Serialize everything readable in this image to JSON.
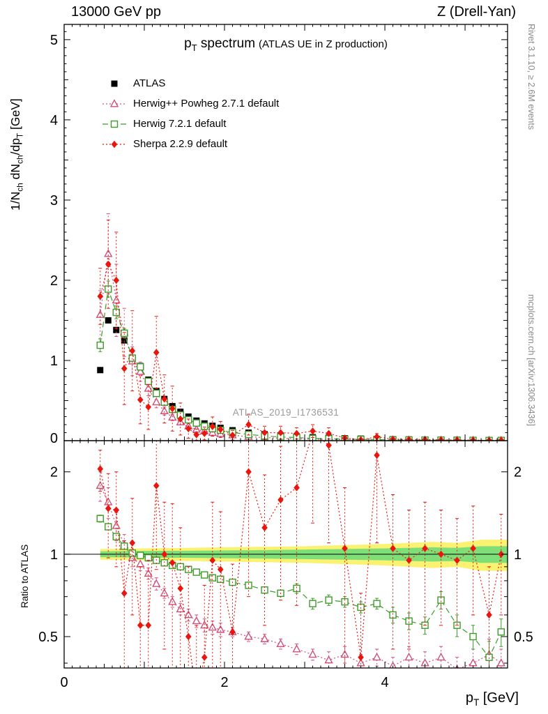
{
  "header": {
    "left": "13000 GeV pp",
    "right": "Z (Drell-Yan)"
  },
  "side_notes": {
    "top_right": "Rivet 3.1.10, ≥ 2.6M events",
    "bottom_right": "mcplots.cern.ch [arXiv:1306.3436]"
  },
  "watermark": "ATLAS_2019_I1736531",
  "chart_data": {
    "type": "line",
    "title_main": "p_{T} spectrum",
    "title_note": "(ATLAS UE in Z production)",
    "xlabel": "p_{T} [GeV]",
    "ylabel": "1/N_{ch} dN_{ch}/dp_{T} [GeV]",
    "ratio_label": "Ratio to ATLAS",
    "xlim": [
      0,
      5.53
    ],
    "ylim": [
      0,
      5.19
    ],
    "ratio_ylim": [
      0.384,
      2.6
    ],
    "x_ticks_labeled": [
      0,
      2,
      4
    ],
    "y_ticks_labeled": [
      0,
      1,
      2,
      3,
      4,
      5
    ],
    "ratio_ticks_labeled": [
      0.5,
      1,
      2
    ],
    "band_colors": {
      "outer": "#fbf272",
      "inner": "#7edf78"
    },
    "bands": {
      "x": [
        0.45,
        1.0,
        1.5,
        2.0,
        2.5,
        3.0,
        3.5,
        4.0,
        4.3,
        4.6,
        4.9,
        5.2,
        5.53
      ],
      "outer_halfwidth": [
        0.045,
        0.05,
        0.055,
        0.06,
        0.065,
        0.07,
        0.08,
        0.09,
        0.1,
        0.11,
        0.1,
        0.13,
        0.13
      ],
      "inner_halfwidth": [
        0.025,
        0.028,
        0.03,
        0.033,
        0.036,
        0.04,
        0.045,
        0.05,
        0.055,
        0.06,
        0.055,
        0.07,
        0.07
      ]
    },
    "x": [
      0.45,
      0.55,
      0.65,
      0.75,
      0.85,
      0.95,
      1.05,
      1.15,
      1.25,
      1.35,
      1.45,
      1.55,
      1.65,
      1.75,
      1.85,
      1.95,
      2.1,
      2.3,
      2.5,
      2.7,
      2.9,
      3.1,
      3.3,
      3.5,
      3.7,
      3.9,
      4.1,
      4.3,
      4.5,
      4.7,
      4.9,
      5.1,
      5.3,
      5.45
    ],
    "series": [
      {
        "name": "ATLAS",
        "color": "#000000",
        "marker": "square-filled",
        "line": "none",
        "values": [
          0.88,
          1.5,
          1.38,
          1.25,
          1.02,
          0.93,
          0.76,
          0.62,
          0.52,
          0.43,
          0.36,
          0.3,
          0.25,
          0.215,
          0.185,
          0.16,
          0.13,
          0.1,
          0.08,
          0.064,
          0.052,
          0.043,
          0.036,
          0.03,
          0.025,
          0.021,
          0.018,
          0.015,
          0.013,
          0.011,
          0.01,
          0.008,
          0.007,
          0.006
        ]
      },
      {
        "name": "Herwig++ Powheg 2.7.1 default",
        "color": "#d0507a",
        "marker": "triangle-open",
        "line": "dotted",
        "values": [
          1.57,
          2.33,
          1.75,
          1.35,
          0.99,
          0.86,
          0.65,
          0.48,
          0.37,
          0.29,
          0.23,
          0.18,
          0.14,
          0.12,
          0.1,
          0.085,
          0.068,
          0.05,
          0.039,
          0.03,
          0.023,
          0.018,
          0.015,
          0.013,
          0.01,
          0.009,
          0.007,
          0.006,
          0.005,
          0.005,
          0.004,
          0.003,
          0.003,
          0.002
        ],
        "yerr": [
          0.3,
          0.5,
          0.45,
          0.3,
          0.18,
          0.12,
          0.09,
          0.07,
          0.05,
          0.04,
          0.03,
          0.025,
          0.02,
          0.018,
          0.015,
          0.013,
          0.01,
          0.008,
          0.007,
          0.006,
          0.005,
          0.004,
          0.004,
          0.003,
          0.003,
          0.003,
          0.002,
          0.002,
          0.002,
          0.002,
          0.002,
          0.002,
          0.002,
          0.002
        ],
        "ratio": [
          1.78,
          1.55,
          1.27,
          1.08,
          0.97,
          0.92,
          0.85,
          0.78,
          0.72,
          0.67,
          0.63,
          0.6,
          0.57,
          0.55,
          0.54,
          0.53,
          0.52,
          0.5,
          0.49,
          0.47,
          0.45,
          0.43,
          0.41,
          0.43,
          0.4,
          0.42,
          0.39,
          0.42,
          0.4,
          0.42,
          0.38,
          0.4,
          0.43,
          0.4
        ],
        "ratio_err": [
          0.22,
          0.2,
          0.15,
          0.1,
          0.07,
          0.05,
          0.04,
          0.04,
          0.03,
          0.03,
          0.03,
          0.03,
          0.03,
          0.03,
          0.03,
          0.03,
          0.02,
          0.02,
          0.02,
          0.02,
          0.02,
          0.02,
          0.03,
          0.03,
          0.03,
          0.03,
          0.03,
          0.04,
          0.04,
          0.04,
          0.04,
          0.05,
          0.06,
          0.05
        ]
      },
      {
        "name": "Herwig 7.2.1 default",
        "color": "#3b9c28",
        "marker": "square-open",
        "line": "dashed",
        "values": [
          1.19,
          1.89,
          1.6,
          1.34,
          1.03,
          0.92,
          0.74,
          0.59,
          0.48,
          0.39,
          0.32,
          0.26,
          0.22,
          0.18,
          0.15,
          0.13,
          0.103,
          0.077,
          0.059,
          0.046,
          0.039,
          0.028,
          0.024,
          0.02,
          0.016,
          0.014,
          0.011,
          0.0086,
          0.0072,
          0.0075,
          0.0055,
          0.004,
          0.0029,
          0.0031
        ],
        "yerr": [
          0.08,
          0.1,
          0.08,
          0.06,
          0.04,
          0.03,
          0.025,
          0.02,
          0.018,
          0.015,
          0.013,
          0.012,
          0.01,
          0.009,
          0.008,
          0.007,
          0.006,
          0.005,
          0.004,
          0.004,
          0.003,
          0.003,
          0.003,
          0.002,
          0.002,
          0.002,
          0.002,
          0.002,
          0.002,
          0.002,
          0.002,
          0.002,
          0.002,
          0.002
        ],
        "ratio": [
          1.35,
          1.26,
          1.16,
          1.07,
          1.01,
          0.99,
          0.97,
          0.95,
          0.93,
          0.91,
          0.9,
          0.88,
          0.86,
          0.84,
          0.82,
          0.81,
          0.79,
          0.77,
          0.74,
          0.72,
          0.75,
          0.66,
          0.68,
          0.67,
          0.64,
          0.66,
          0.6,
          0.57,
          0.55,
          0.68,
          0.55,
          0.5,
          0.42,
          0.52
        ],
        "ratio_err": [
          0.04,
          0.03,
          0.03,
          0.02,
          0.02,
          0.02,
          0.02,
          0.02,
          0.02,
          0.02,
          0.02,
          0.02,
          0.02,
          0.02,
          0.02,
          0.02,
          0.02,
          0.02,
          0.02,
          0.02,
          0.03,
          0.03,
          0.03,
          0.03,
          0.03,
          0.03,
          0.04,
          0.04,
          0.04,
          0.05,
          0.05,
          0.05,
          0.06,
          0.06
        ]
      },
      {
        "name": "Sherpa 2.2.9 default",
        "color": "#e8160c",
        "marker": "diamond-filled",
        "line": "dotted",
        "values": [
          1.8,
          2.2,
          2.0,
          0.9,
          1.12,
          0.51,
          0.42,
          1.1,
          0.52,
          0.4,
          0.27,
          0.15,
          0.075,
          0.09,
          0.176,
          0.14,
          0.068,
          0.2,
          0.1,
          0.1,
          0.09,
          0.12,
          0.09,
          0.032,
          0.011,
          0.048,
          0.019,
          0.014,
          0.014,
          0.011,
          0.0095,
          0.008,
          0.004,
          0.006
        ],
        "yerr": [
          0.35,
          0.55,
          0.6,
          0.45,
          0.5,
          0.3,
          0.28,
          0.45,
          0.3,
          0.28,
          0.2,
          0.12,
          0.07,
          0.08,
          0.12,
          0.1,
          0.06,
          0.13,
          0.08,
          0.08,
          0.07,
          0.08,
          0.07,
          0.03,
          0.01,
          0.04,
          0.015,
          0.012,
          0.012,
          0.009,
          0.008,
          0.007,
          0.004,
          0.005
        ],
        "ratio": [
          2.05,
          1.47,
          1.45,
          0.72,
          1.1,
          0.55,
          0.55,
          1.78,
          1.0,
          0.93,
          0.75,
          0.5,
          0.3,
          0.42,
          0.95,
          0.88,
          0.52,
          2.0,
          1.25,
          1.58,
          1.75,
          2.8,
          2.5,
          1.05,
          0.42,
          2.3,
          1.05,
          0.95,
          1.05,
          1.0,
          0.95,
          1.05,
          0.6,
          1.0
        ],
        "ratio_err": [
          0.35,
          0.5,
          0.55,
          0.4,
          0.5,
          0.35,
          0.4,
          0.9,
          0.55,
          0.6,
          0.5,
          0.4,
          0.25,
          0.35,
          0.6,
          0.55,
          0.4,
          1.3,
          0.7,
          0.9,
          1.1,
          1.5,
          1.4,
          0.7,
          0.3,
          1.2,
          0.6,
          0.5,
          0.5,
          0.45,
          0.4,
          0.45,
          0.3,
          0.4
        ]
      }
    ]
  }
}
